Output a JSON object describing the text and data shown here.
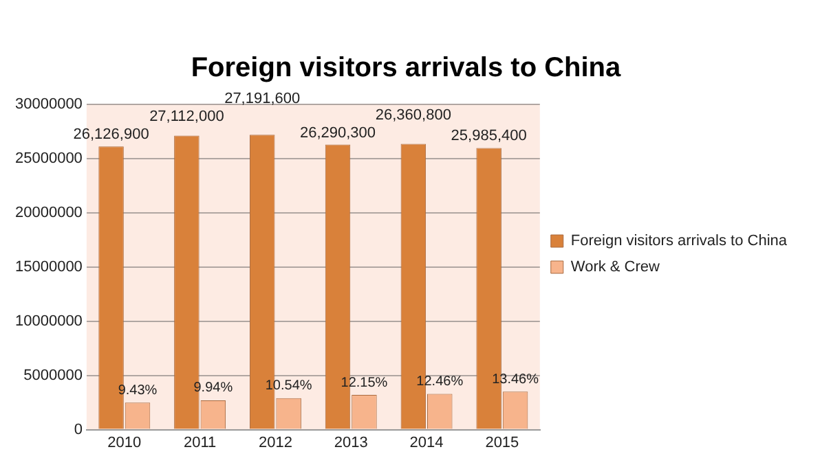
{
  "chart_data": {
    "type": "bar",
    "title": "Foreign visitors arrivals to China",
    "categories": [
      "2010",
      "2011",
      "2012",
      "2013",
      "2014",
      "2015"
    ],
    "series": [
      {
        "name": "Foreign visitors arrivals to China",
        "color": "#d9813a",
        "values": [
          26126900,
          27112000,
          27191600,
          26290300,
          26360800,
          25985400
        ],
        "value_labels": [
          "26,126,900",
          "27,112,000",
          "27,191,600",
          "26,290,300",
          "26,360,800",
          "25,985,400"
        ]
      },
      {
        "name": "Work & Crew",
        "color": "#f7b48c",
        "values": [
          2500000,
          2700000,
          2900000,
          3200000,
          3300000,
          3500000
        ]
      }
    ],
    "annotations": [
      {
        "text": "9.43%",
        "x": "2010",
        "y": 2500000
      },
      {
        "text": "9.94%",
        "x": "2011",
        "y": 2700000
      },
      {
        "text": "10.54%",
        "x": "2012",
        "y": 2900000
      },
      {
        "text": "12.15%",
        "x": "2013",
        "y": 3200000
      },
      {
        "text": "12.46%",
        "x": "2014",
        "y": 3300000
      },
      {
        "text": "13.46%",
        "x": "2015",
        "y": 3500000
      }
    ],
    "ylim": [
      0,
      30000000
    ],
    "yticks": [
      0,
      5000000,
      10000000,
      15000000,
      20000000,
      25000000,
      30000000
    ],
    "grid": "y",
    "legend": "right"
  }
}
